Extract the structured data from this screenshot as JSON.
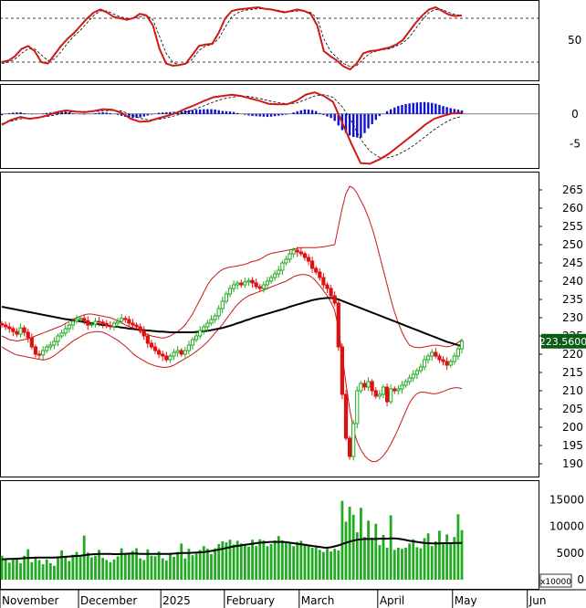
{
  "colors": {
    "up_candle": "#22aa22",
    "down_candle": "#e01010",
    "stoch_k": "#d01818",
    "stoch_d": "#000000",
    "macd": "#d01818",
    "signal": "#000000",
    "hist": "#1010cc",
    "ma": "#000000",
    "bands": "#c81818",
    "volume": "#22aa22",
    "volume_ma": "#000000",
    "price_tag_bg": "#0a5c14",
    "price_tag_text": "#ffffff"
  },
  "x_axis": {
    "months": [
      {
        "label": "November",
        "index": 0
      },
      {
        "label": "December",
        "index": 21
      },
      {
        "label": "2025",
        "index": 43
      },
      {
        "label": "February",
        "index": 60
      },
      {
        "label": "March",
        "index": 80
      },
      {
        "label": "April",
        "index": 101
      },
      {
        "label": "May",
        "index": 121
      },
      {
        "label": "Jun",
        "index": 141
      }
    ],
    "total_slots": 144
  },
  "chart_data": [
    {
      "type": "line",
      "name": "stochastic",
      "ylim": [
        0,
        100
      ],
      "tick_labels": [
        "50"
      ],
      "ref_levels": [
        20,
        80
      ],
      "k": [
        20,
        22,
        28,
        38,
        42,
        35,
        20,
        18,
        30,
        42,
        52,
        60,
        70,
        80,
        88,
        92,
        88,
        82,
        80,
        78,
        80,
        86,
        84,
        70,
        38,
        18,
        15,
        16,
        18,
        30,
        42,
        44,
        45,
        60,
        80,
        90,
        92,
        93,
        94,
        95,
        93,
        92,
        90,
        88,
        90,
        92,
        90,
        86,
        70,
        35,
        28,
        22,
        14,
        10,
        18,
        32,
        35,
        36,
        38,
        40,
        44,
        50,
        62,
        74,
        84,
        92,
        95,
        90,
        85,
        83,
        84
      ],
      "d": [
        18,
        20,
        24,
        32,
        38,
        38,
        30,
        22,
        24,
        34,
        46,
        56,
        64,
        74,
        84,
        90,
        90,
        86,
        82,
        80,
        80,
        82,
        84,
        78,
        55,
        32,
        20,
        16,
        17,
        24,
        36,
        42,
        44,
        52,
        68,
        82,
        88,
        91,
        92,
        93,
        93,
        92,
        91,
        89,
        89,
        90,
        90,
        88,
        80,
        52,
        35,
        26,
        18,
        14,
        15,
        24,
        32,
        35,
        37,
        38,
        42,
        46,
        54,
        66,
        78,
        88,
        92,
        92,
        88,
        85,
        84
      ]
    },
    {
      "type": "line",
      "name": "macd",
      "ylim": [
        -9,
        5
      ],
      "tick_labels": [
        "0",
        "-5"
      ],
      "macd": [
        -1.8,
        -1.0,
        -0.5,
        -0.8,
        -0.6,
        -0.2,
        0.3,
        0.6,
        0.4,
        0.3,
        0.5,
        0.8,
        0.7,
        0.2,
        -0.8,
        -1.3,
        -1.2,
        -0.7,
        -0.3,
        0.2,
        0.9,
        1.5,
        2.2,
        2.8,
        3.0,
        3.2,
        3.0,
        2.6,
        2.2,
        1.7,
        1.6,
        1.6,
        2.2,
        3.2,
        3.6,
        3.0,
        2.0,
        -1.5,
        -5.0,
        -8.2,
        -8.3,
        -7.6,
        -6.7,
        -5.5,
        -4.3,
        -3.1,
        -1.8,
        -0.8,
        -0.3,
        0.1,
        0.2
      ],
      "signal": [
        -1.6,
        -1.2,
        -0.8,
        -0.7,
        -0.6,
        -0.4,
        -0.1,
        0.2,
        0.4,
        0.4,
        0.4,
        0.5,
        0.6,
        0.5,
        -0.1,
        -0.7,
        -1.0,
        -0.9,
        -0.6,
        -0.2,
        0.3,
        0.8,
        1.4,
        2.0,
        2.5,
        2.8,
        3.0,
        2.9,
        2.6,
        2.2,
        1.9,
        1.7,
        1.8,
        2.4,
        3.0,
        3.2,
        2.8,
        1.2,
        -1.2,
        -4.2,
        -6.2,
        -7.2,
        -7.3,
        -6.8,
        -6.0,
        -5.0,
        -3.8,
        -2.6,
        -1.6,
        -0.8,
        -0.4
      ],
      "histogram": [
        -0.2,
        0.2,
        0.3,
        -0.1,
        0.0,
        0.2,
        0.4,
        0.4,
        0.0,
        -0.1,
        0.1,
        0.3,
        0.1,
        -0.3,
        -0.7,
        -0.6,
        -0.2,
        0.2,
        0.3,
        0.4,
        0.6,
        0.7,
        0.8,
        0.8,
        0.5,
        0.4,
        0.0,
        -0.3,
        -0.4,
        -0.5,
        -0.3,
        -0.1,
        0.4,
        0.8,
        0.6,
        -0.2,
        -0.8,
        -2.7,
        -3.8,
        -4.0,
        -2.1,
        -0.4,
        0.6,
        1.3,
        1.7,
        1.9,
        2.0,
        1.8,
        1.3,
        0.9,
        0.6
      ]
    },
    {
      "type": "candlestick",
      "name": "price",
      "ylim": [
        186.5,
        270
      ],
      "y_ticks": [
        190,
        195,
        200,
        205,
        210,
        215,
        220,
        225,
        230,
        235,
        240,
        245,
        250,
        255,
        260,
        265
      ],
      "last_price_label": "223.5600",
      "last_price": 223.56,
      "close": [
        228.0,
        227.5,
        227.0,
        226.2,
        225.5,
        227.2,
        226.0,
        224.5,
        222.0,
        220.0,
        219.8,
        221.0,
        222.0,
        222.5,
        223.5,
        225.0,
        225.8,
        227.0,
        228.0,
        229.0,
        229.5,
        229.8,
        229.2,
        228.0,
        228.2,
        229.0,
        228.8,
        228.4,
        227.8,
        227.6,
        228.5,
        229.0,
        229.8,
        229.5,
        228.5,
        228.0,
        227.5,
        226.5,
        225.0,
        223.0,
        222.0,
        221.0,
        220.0,
        219.5,
        218.5,
        219.5,
        220.5,
        221.0,
        220.0,
        221.0,
        222.5,
        224.0,
        225.0,
        226.5,
        227.5,
        228.5,
        229.5,
        230.5,
        232.5,
        234.5,
        236.5,
        238.0,
        239.0,
        239.5,
        239.0,
        239.8,
        240.2,
        239.5,
        238.5,
        238.0,
        239.0,
        240.0,
        241.0,
        242.0,
        243.0,
        245.0,
        246.0,
        247.5,
        248.5,
        248.0,
        247.5,
        246.5,
        245.5,
        243.5,
        242.5,
        241.0,
        239.0,
        238.0,
        236.0,
        234.0,
        222.0,
        209.0,
        197.0,
        192.0,
        201.0,
        210.0,
        212.0,
        211.0,
        212.5,
        210.0,
        208.5,
        209.0,
        211.0,
        207.0,
        210.5,
        210.0,
        210.5,
        211.5,
        212.5,
        213.5,
        214.5,
        215.5,
        216.5,
        218.5,
        219.5,
        220.5,
        219.5,
        218.5,
        218.0,
        217.0,
        218.0,
        219.5,
        221.5,
        223.56
      ],
      "upper_band": [
        225.0,
        224.5,
        224.0,
        223.8,
        223.6,
        223.8,
        224.0,
        224.2,
        224.6,
        225.0,
        225.4,
        225.8,
        226.2,
        226.6,
        227.0,
        227.4,
        227.8,
        228.4,
        229.0,
        229.6,
        230.0,
        230.4,
        230.8,
        231.0,
        231.0,
        230.8,
        230.6,
        230.4,
        230.2,
        230.0,
        229.6,
        229.2,
        228.6,
        228.0,
        227.6,
        227.2,
        226.8,
        226.2,
        225.8,
        225.4,
        225.0,
        224.8,
        224.6,
        224.4,
        224.6,
        225.0,
        225.6,
        226.2,
        227.0,
        228.0,
        229.5,
        231.0,
        233.0,
        235.0,
        237.0,
        239.0,
        240.5,
        241.5,
        242.5,
        243.2,
        243.6,
        243.9,
        244.0,
        244.2,
        244.4,
        244.6,
        245.0,
        245.4,
        245.6,
        246.0,
        246.6,
        247.2,
        247.6,
        247.8,
        248.0,
        248.2,
        248.4,
        248.6,
        248.8,
        249.0,
        249.2,
        249.2,
        249.2,
        249.2,
        249.2,
        249.3,
        249.4,
        249.6,
        249.8,
        250.0,
        255.0,
        260.0,
        264.0,
        266.0,
        265.5,
        264.0,
        262.0,
        260.0,
        257.5,
        254.5,
        251.0,
        247.0,
        243.0,
        239.0,
        235.0,
        231.5,
        228.5,
        226.0,
        224.0,
        222.5,
        222.0,
        221.8,
        221.8,
        222.0,
        222.2,
        222.4,
        222.5,
        222.4,
        222.2,
        222.0,
        222.2,
        222.6,
        223.2,
        224.0
      ],
      "lower_band": [
        222.0,
        221.4,
        220.8,
        220.2,
        219.8,
        219.6,
        219.4,
        219.2,
        219.0,
        218.8,
        218.6,
        218.4,
        218.6,
        219.0,
        219.6,
        220.4,
        221.2,
        222.0,
        222.8,
        223.6,
        224.2,
        224.8,
        225.4,
        225.8,
        226.0,
        226.2,
        226.2,
        226.0,
        225.6,
        225.0,
        224.4,
        223.8,
        223.0,
        222.2,
        221.2,
        220.2,
        219.4,
        218.8,
        218.2,
        217.6,
        217.2,
        216.8,
        216.6,
        216.4,
        216.4,
        216.6,
        217.0,
        217.6,
        218.2,
        218.8,
        219.4,
        220.0,
        220.8,
        221.6,
        222.4,
        223.4,
        224.6,
        225.8,
        227.0,
        228.2,
        229.6,
        231.0,
        232.4,
        233.6,
        234.6,
        235.4,
        236.0,
        236.4,
        236.8,
        237.2,
        237.6,
        238.0,
        238.4,
        238.8,
        239.2,
        239.6,
        240.0,
        240.6,
        241.2,
        241.6,
        241.8,
        241.8,
        241.6,
        241.0,
        240.0,
        238.8,
        237.4,
        236.0,
        234.2,
        232.0,
        227.0,
        220.0,
        212.0,
        205.0,
        199.5,
        196.0,
        193.8,
        192.2,
        191.2,
        190.6,
        190.6,
        191.2,
        192.2,
        193.6,
        195.4,
        197.4,
        199.6,
        202.0,
        204.4,
        206.6,
        208.2,
        209.2,
        209.6,
        209.6,
        209.4,
        209.2,
        209.2,
        209.4,
        209.8,
        210.2,
        210.6,
        210.8,
        210.8,
        210.6
      ],
      "middle_ma": [
        233.0,
        232.8,
        232.6,
        232.4,
        232.2,
        232.0,
        231.8,
        231.6,
        231.4,
        231.2,
        231.0,
        230.8,
        230.6,
        230.4,
        230.2,
        230.0,
        229.8,
        229.6,
        229.5,
        229.3,
        229.1,
        229.0,
        228.8,
        228.6,
        228.5,
        228.3,
        228.2,
        228.0,
        227.9,
        227.7,
        227.6,
        227.5,
        227.3,
        227.2,
        227.0,
        226.9,
        226.8,
        226.7,
        226.6,
        226.5,
        226.4,
        226.3,
        226.2,
        226.2,
        226.1,
        226.0,
        226.0,
        226.0,
        226.0,
        226.0,
        226.0,
        226.0,
        226.1,
        226.2,
        226.3,
        226.4,
        226.6,
        226.8,
        227.0,
        227.2,
        227.5,
        227.8,
        228.1,
        228.5,
        228.8,
        229.2,
        229.5,
        229.9,
        230.2,
        230.5,
        230.8,
        231.1,
        231.4,
        231.7,
        232.0,
        232.3,
        232.6,
        233.0,
        233.3,
        233.6,
        233.9,
        234.2,
        234.5,
        234.8,
        235.0,
        235.2,
        235.3,
        235.4,
        235.4,
        235.3,
        235.0,
        234.6,
        234.2,
        233.8,
        233.4,
        233.0,
        232.6,
        232.2,
        231.8,
        231.4,
        231.0,
        230.6,
        230.2,
        229.8,
        229.4,
        229.0,
        228.6,
        228.2,
        227.8,
        227.4,
        227.0,
        226.6,
        226.2,
        225.8,
        225.4,
        225.0,
        224.6,
        224.2,
        223.8,
        223.4,
        223.1,
        222.8,
        222.5,
        222.2
      ]
    },
    {
      "type": "bar",
      "name": "volume",
      "ylim": [
        0,
        18000
      ],
      "y_ticks": [
        0,
        5000,
        10000,
        15000
      ],
      "unit_label": "x10000",
      "values": [
        4500,
        3700,
        3200,
        4100,
        3900,
        3100,
        4500,
        5700,
        3300,
        4200,
        3700,
        2900,
        3800,
        3100,
        2600,
        4300,
        5500,
        4300,
        3500,
        4700,
        5200,
        4300,
        8300,
        5100,
        4200,
        4500,
        5600,
        4100,
        3700,
        3300,
        3800,
        4400,
        5900,
        4700,
        4800,
        5400,
        5900,
        4000,
        3700,
        5700,
        4500,
        4400,
        5300,
        4000,
        3600,
        4700,
        4300,
        5200,
        6800,
        4000,
        5800,
        4600,
        5100,
        5600,
        6300,
        5800,
        4800,
        5900,
        6700,
        7200,
        7000,
        7500,
        6600,
        7300,
        6800,
        6400,
        6200,
        7500,
        6300,
        7600,
        7400,
        6300,
        6700,
        7400,
        8200,
        7400,
        6900,
        6900,
        6300,
        7100,
        7300,
        6600,
        6600,
        6000,
        6100,
        5600,
        5200,
        5800,
        5300,
        5800,
        5500,
        14800,
        10900,
        13700,
        12200,
        8900,
        13500,
        8000,
        11100,
        7900,
        10500,
        6500,
        8400,
        6000,
        12100,
        5600,
        6000,
        5800,
        6000,
        6800,
        7600,
        6100,
        5900,
        7800,
        8700,
        6300,
        7200,
        9200,
        6800,
        8500,
        6900,
        8000,
        12300,
        9300
      ],
      "ma": [
        3800,
        3850,
        3900,
        3900,
        3950,
        4000,
        4050,
        4100,
        4100,
        4150,
        4150,
        4150,
        4150,
        4150,
        4150,
        4200,
        4250,
        4300,
        4350,
        4400,
        4450,
        4500,
        4600,
        4700,
        4750,
        4800,
        4850,
        4850,
        4850,
        4850,
        4800,
        4800,
        4850,
        4850,
        4900,
        4900,
        4900,
        4850,
        4850,
        4850,
        4850,
        4850,
        4850,
        4850,
        4850,
        4850,
        4900,
        4950,
        5000,
        5000,
        5000,
        5050,
        5100,
        5150,
        5200,
        5300,
        5400,
        5500,
        5650,
        5800,
        5950,
        6100,
        6250,
        6350,
        6450,
        6550,
        6650,
        6750,
        6850,
        6950,
        7000,
        7050,
        7100,
        7100,
        7100,
        7100,
        7050,
        6950,
        6850,
        6750,
        6650,
        6550,
        6450,
        6350,
        6250,
        6150,
        6050,
        6000,
        6100,
        6250,
        6450,
        6700,
        6950,
        7150,
        7350,
        7500,
        7600,
        7650,
        7650,
        7650,
        7650,
        7700,
        7700,
        7700,
        7750,
        7750,
        7700,
        7600,
        7450,
        7300,
        7200,
        7100,
        7000,
        6900,
        6850,
        6800,
        6800,
        6800,
        6850,
        6850,
        6850,
        6900,
        6900,
        6900
      ]
    }
  ]
}
